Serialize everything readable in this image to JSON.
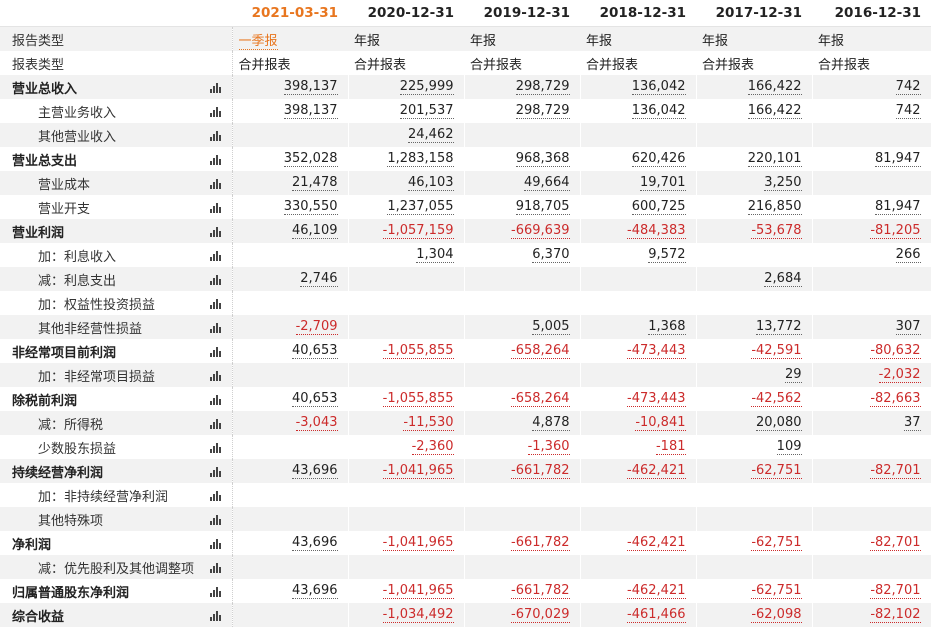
{
  "periods": [
    "2021-03-31",
    "2020-12-31",
    "2019-12-31",
    "2018-12-31",
    "2017-12-31",
    "2016-12-31"
  ],
  "report_type_row": {
    "label": "报告类型",
    "values": [
      "一季报",
      "年报",
      "年报",
      "年报",
      "年报",
      "年报"
    ]
  },
  "statement_type_row": {
    "label": "报表类型",
    "values": [
      "合并报表",
      "合并报表",
      "合并报表",
      "合并报表",
      "合并报表",
      "合并报表"
    ]
  },
  "rows": [
    {
      "label": "营业总收入",
      "bold": true,
      "values": [
        "398,137",
        "225,999",
        "298,729",
        "136,042",
        "166,422",
        "742"
      ]
    },
    {
      "label": "主营业务收入",
      "values": [
        "398,137",
        "201,537",
        "298,729",
        "136,042",
        "166,422",
        "742"
      ]
    },
    {
      "label": "其他营业收入",
      "values": [
        "",
        "24,462",
        "",
        "",
        "",
        ""
      ]
    },
    {
      "label": "营业总支出",
      "bold": true,
      "values": [
        "352,028",
        "1,283,158",
        "968,368",
        "620,426",
        "220,101",
        "81,947"
      ]
    },
    {
      "label": "营业成本",
      "values": [
        "21,478",
        "46,103",
        "49,664",
        "19,701",
        "3,250",
        ""
      ]
    },
    {
      "label": "营业开支",
      "values": [
        "330,550",
        "1,237,055",
        "918,705",
        "600,725",
        "216,850",
        "81,947"
      ]
    },
    {
      "label": "营业利润",
      "bold": true,
      "values": [
        "46,109",
        "-1,057,159",
        "-669,639",
        "-484,383",
        "-53,678",
        "-81,205"
      ]
    },
    {
      "label": "加：利息收入",
      "values": [
        "",
        "1,304",
        "6,370",
        "9,572",
        "",
        "266"
      ]
    },
    {
      "label": "减：利息支出",
      "values": [
        "2,746",
        "",
        "",
        "",
        "2,684",
        ""
      ]
    },
    {
      "label": "加：权益性投资损益",
      "values": [
        "",
        "",
        "",
        "",
        "",
        ""
      ]
    },
    {
      "label": "其他非经营性损益",
      "values": [
        "-2,709",
        "",
        "5,005",
        "1,368",
        "13,772",
        "307"
      ]
    },
    {
      "label": "非经常项目前利润",
      "bold": true,
      "values": [
        "40,653",
        "-1,055,855",
        "-658,264",
        "-473,443",
        "-42,591",
        "-80,632"
      ]
    },
    {
      "label": "加：非经常项目损益",
      "values": [
        "",
        "",
        "",
        "",
        "29",
        "-2,032"
      ]
    },
    {
      "label": "除税前利润",
      "bold": true,
      "values": [
        "40,653",
        "-1,055,855",
        "-658,264",
        "-473,443",
        "-42,562",
        "-82,663"
      ]
    },
    {
      "label": "减：所得税",
      "values": [
        "-3,043",
        "-11,530",
        "4,878",
        "-10,841",
        "20,080",
        "37"
      ]
    },
    {
      "label": "少数股东损益",
      "values": [
        "",
        "-2,360",
        "-1,360",
        "-181",
        "109",
        ""
      ]
    },
    {
      "label": "持续经营净利润",
      "bold": true,
      "values": [
        "43,696",
        "-1,041,965",
        "-661,782",
        "-462,421",
        "-62,751",
        "-82,701"
      ]
    },
    {
      "label": "加：非持续经营净利润",
      "values": [
        "",
        "",
        "",
        "",
        "",
        ""
      ]
    },
    {
      "label": "其他特殊项",
      "values": [
        "",
        "",
        "",
        "",
        "",
        ""
      ]
    },
    {
      "label": "净利润",
      "bold": true,
      "values": [
        "43,696",
        "-1,041,965",
        "-661,782",
        "-462,421",
        "-62,751",
        "-82,701"
      ]
    },
    {
      "label": "减：优先股利及其他调整项",
      "values": [
        "",
        "",
        "",
        "",
        "",
        ""
      ]
    },
    {
      "label": "归属普通股东净利润",
      "bold": true,
      "values": [
        "43,696",
        "-1,041,965",
        "-661,782",
        "-462,421",
        "-62,751",
        "-82,701"
      ]
    },
    {
      "label": "综合收益",
      "bold": true,
      "values": [
        "",
        "-1,034,492",
        "-670,029",
        "-461,466",
        "-62,098",
        "-82,102"
      ]
    }
  ],
  "icons": {
    "row_chart": "bar-chart-icon"
  },
  "colors": {
    "accent_period": "#e8761f",
    "negative": "#cc2b2b",
    "row_alt_bg": "#f2f2f2"
  }
}
